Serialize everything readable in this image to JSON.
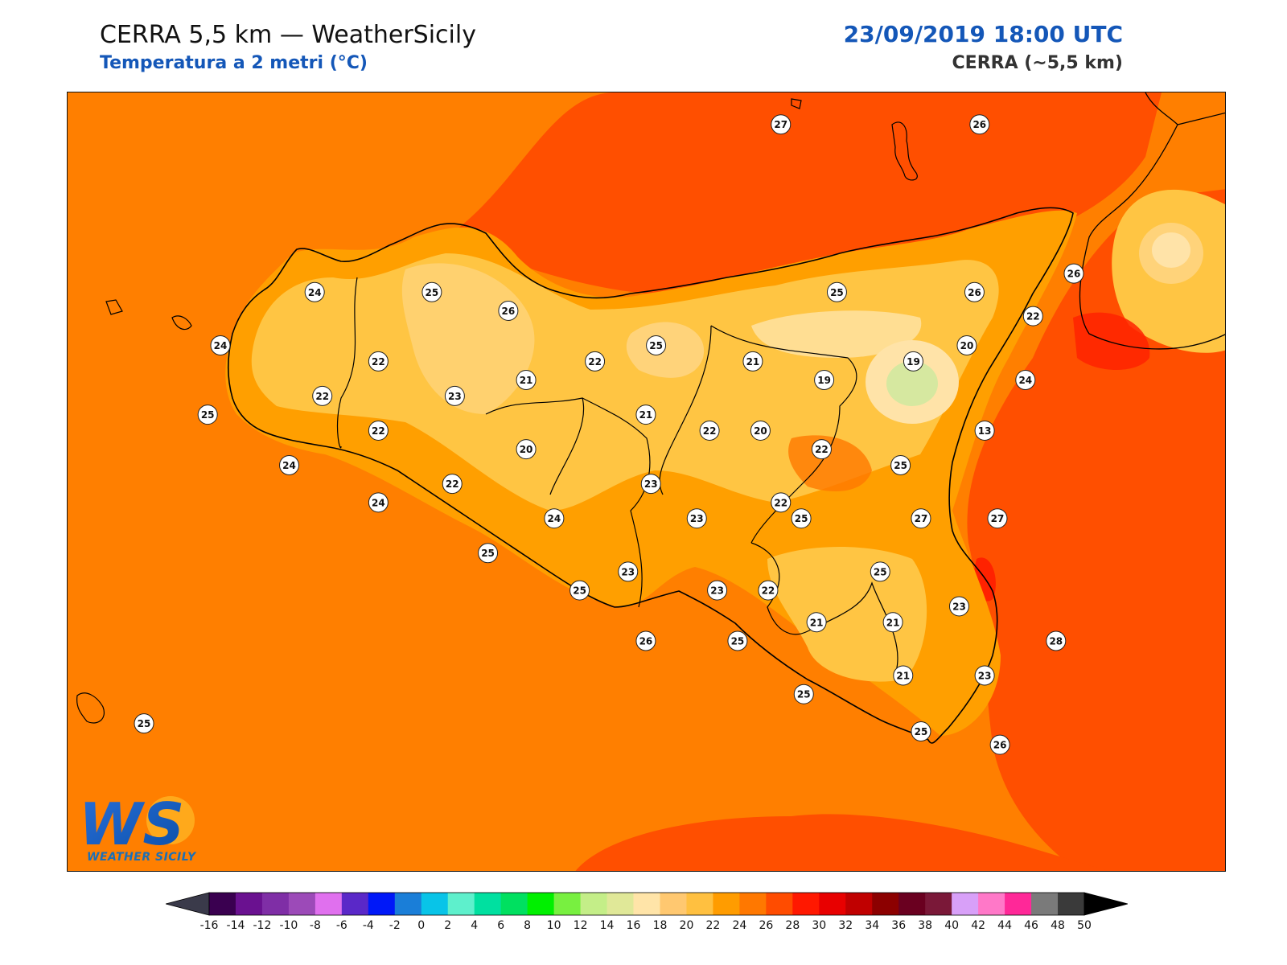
{
  "header": {
    "title": "CERRA 5,5 km — WeatherSicily",
    "subtitle": "Temperatura a 2 metri (°C)",
    "datetime": "23/09/2019 18:00 UTC",
    "model": "CERRA (~5,5 km)"
  },
  "logo": {
    "mark": "WS",
    "text": "WEATHER SICILY"
  },
  "colors": {
    "sea": "#ff7f00",
    "warm_sea": "#ff4f00",
    "land_24": "#ff9f00",
    "land_22": "#ffc543",
    "land_20": "#ffd37a",
    "land_18": "#ffe3a8",
    "cold_13": "#d6e8a0",
    "hot_28": "#ff2200",
    "coast": "#000000",
    "title_blue": "#1457b8"
  },
  "colorbar": {
    "ticks": [
      "-16",
      "-14",
      "-12",
      "-10",
      "-8",
      "-6",
      "-4",
      "-2",
      "0",
      "2",
      "4",
      "6",
      "8",
      "10",
      "12",
      "14",
      "16",
      "18",
      "20",
      "22",
      "24",
      "26",
      "28",
      "30",
      "32",
      "34",
      "36",
      "38",
      "40",
      "42",
      "44",
      "46",
      "48",
      "50"
    ],
    "colors": [
      "#3a0050",
      "#6a1190",
      "#7f2ea6",
      "#9c4ab8",
      "#e070ee",
      "#5a28c8",
      "#0018f8",
      "#1a7ed8",
      "#08c4e8",
      "#5ef0cc",
      "#00e0a0",
      "#00e060",
      "#00f000",
      "#78f040",
      "#c4ee88",
      "#e0e898",
      "#ffe4a8",
      "#ffc870",
      "#ffc040",
      "#ff9c00",
      "#ff7800",
      "#ff4c00",
      "#ff1800",
      "#e80000",
      "#c00000",
      "#8c0000",
      "#6a0020",
      "#7a1838",
      "#d8a0f8",
      "#ff78c8",
      "#ff2898",
      "#7a7a7a",
      "#3a3a3a"
    ]
  },
  "stations": [
    {
      "v": "27",
      "lon": 14.45,
      "lat": 38.83
    },
    {
      "v": "26",
      "lon": 15.23,
      "lat": 38.83
    },
    {
      "v": "24",
      "lon": 12.62,
      "lat": 38.2
    },
    {
      "v": "25",
      "lon": 13.08,
      "lat": 38.2
    },
    {
      "v": "26",
      "lon": 13.38,
      "lat": 38.13
    },
    {
      "v": "25",
      "lon": 14.67,
      "lat": 38.2
    },
    {
      "v": "26",
      "lon": 15.21,
      "lat": 38.2
    },
    {
      "v": "26",
      "lon": 15.6,
      "lat": 38.27
    },
    {
      "v": "22",
      "lon": 15.44,
      "lat": 38.11
    },
    {
      "v": "24",
      "lon": 12.25,
      "lat": 38.0
    },
    {
      "v": "22",
      "lon": 12.87,
      "lat": 37.94
    },
    {
      "v": "21",
      "lon": 13.45,
      "lat": 37.87
    },
    {
      "v": "22",
      "lon": 13.72,
      "lat": 37.94
    },
    {
      "v": "25",
      "lon": 13.96,
      "lat": 38.0
    },
    {
      "v": "21",
      "lon": 14.34,
      "lat": 37.94
    },
    {
      "v": "19",
      "lon": 14.62,
      "lat": 37.87
    },
    {
      "v": "19",
      "lon": 14.97,
      "lat": 37.94
    },
    {
      "v": "20",
      "lon": 15.18,
      "lat": 38.0
    },
    {
      "v": "24",
      "lon": 15.41,
      "lat": 37.87
    },
    {
      "v": "22",
      "lon": 12.65,
      "lat": 37.81
    },
    {
      "v": "23",
      "lon": 13.17,
      "lat": 37.81
    },
    {
      "v": "25",
      "lon": 12.2,
      "lat": 37.74
    },
    {
      "v": "21",
      "lon": 13.92,
      "lat": 37.74
    },
    {
      "v": "13",
      "lon": 15.25,
      "lat": 37.68
    },
    {
      "v": "22",
      "lon": 12.87,
      "lat": 37.68
    },
    {
      "v": "22",
      "lon": 14.17,
      "lat": 37.68
    },
    {
      "v": "20",
      "lon": 14.37,
      "lat": 37.68
    },
    {
      "v": "22",
      "lon": 14.61,
      "lat": 37.61
    },
    {
      "v": "20",
      "lon": 13.45,
      "lat": 37.61
    },
    {
      "v": "24",
      "lon": 12.52,
      "lat": 37.55
    },
    {
      "v": "25",
      "lon": 14.92,
      "lat": 37.55
    },
    {
      "v": "22",
      "lon": 13.16,
      "lat": 37.48
    },
    {
      "v": "23",
      "lon": 13.94,
      "lat": 37.48
    },
    {
      "v": "24",
      "lon": 12.87,
      "lat": 37.41
    },
    {
      "v": "22",
      "lon": 14.45,
      "lat": 37.41
    },
    {
      "v": "24",
      "lon": 13.56,
      "lat": 37.35
    },
    {
      "v": "23",
      "lon": 14.12,
      "lat": 37.35
    },
    {
      "v": "25",
      "lon": 14.53,
      "lat": 37.35
    },
    {
      "v": "27",
      "lon": 15.0,
      "lat": 37.35
    },
    {
      "v": "27",
      "lon": 15.3,
      "lat": 37.35
    },
    {
      "v": "25",
      "lon": 13.3,
      "lat": 37.22
    },
    {
      "v": "23",
      "lon": 13.85,
      "lat": 37.15
    },
    {
      "v": "25",
      "lon": 14.84,
      "lat": 37.15
    },
    {
      "v": "25",
      "lon": 13.66,
      "lat": 37.08
    },
    {
      "v": "23",
      "lon": 14.2,
      "lat": 37.08
    },
    {
      "v": "22",
      "lon": 14.4,
      "lat": 37.08
    },
    {
      "v": "23",
      "lon": 15.15,
      "lat": 37.02
    },
    {
      "v": "21",
      "lon": 14.59,
      "lat": 36.96
    },
    {
      "v": "21",
      "lon": 14.89,
      "lat": 36.96
    },
    {
      "v": "26",
      "lon": 13.92,
      "lat": 36.89
    },
    {
      "v": "25",
      "lon": 14.28,
      "lat": 36.89
    },
    {
      "v": "28",
      "lon": 15.53,
      "lat": 36.89
    },
    {
      "v": "25",
      "lon": 14.54,
      "lat": 36.69
    },
    {
      "v": "21",
      "lon": 14.93,
      "lat": 36.76
    },
    {
      "v": "23",
      "lon": 15.25,
      "lat": 36.76
    },
    {
      "v": "25",
      "lon": 11.95,
      "lat": 36.58
    },
    {
      "v": "25",
      "lon": 15.0,
      "lat": 36.55
    },
    {
      "v": "26",
      "lon": 15.31,
      "lat": 36.5
    }
  ]
}
